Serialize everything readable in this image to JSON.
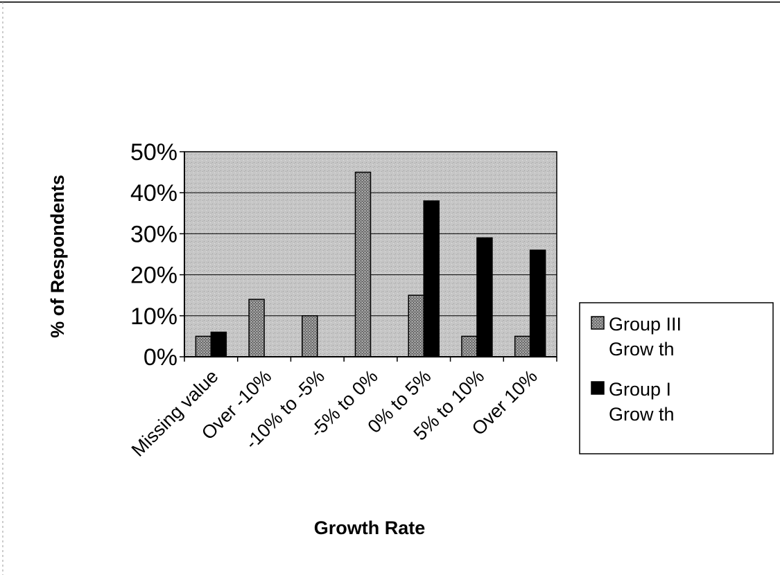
{
  "chart_data": {
    "type": "bar",
    "title": "",
    "xlabel": "Growth Rate",
    "ylabel": "% of Respondents",
    "categories": [
      "Missing value",
      "Over -10%",
      "-10% to -5%",
      "-5% to 0%",
      "0% to 5%",
      "5% to 10%",
      "Over 10%"
    ],
    "ylim": [
      0,
      0.5
    ],
    "yticks": [
      {
        "value": 0,
        "label": "0%"
      },
      {
        "value": 0.1,
        "label": "10%"
      },
      {
        "value": 0.2,
        "label": "20%"
      },
      {
        "value": 0.3,
        "label": "30%"
      },
      {
        "value": 0.4,
        "label": "40%"
      },
      {
        "value": 0.5,
        "label": "50%"
      }
    ],
    "series": [
      {
        "name": "Group III Growth",
        "legend_lines": [
          "Group III",
          "Grow th"
        ],
        "color": "#8a8a8a",
        "pattern": "dotted-gray",
        "values": [
          0.05,
          0.14,
          0.1,
          0.45,
          0.15,
          0.05,
          0.05
        ]
      },
      {
        "name": "Group I Growth",
        "legend_lines": [
          "Group I",
          "Grow th"
        ],
        "color": "#000000",
        "pattern": "solid-black",
        "values": [
          0.06,
          null,
          null,
          null,
          0.38,
          0.29,
          0.26
        ]
      }
    ],
    "grid": true,
    "plot_background": "#c4c4c4",
    "legend_position": "right"
  }
}
